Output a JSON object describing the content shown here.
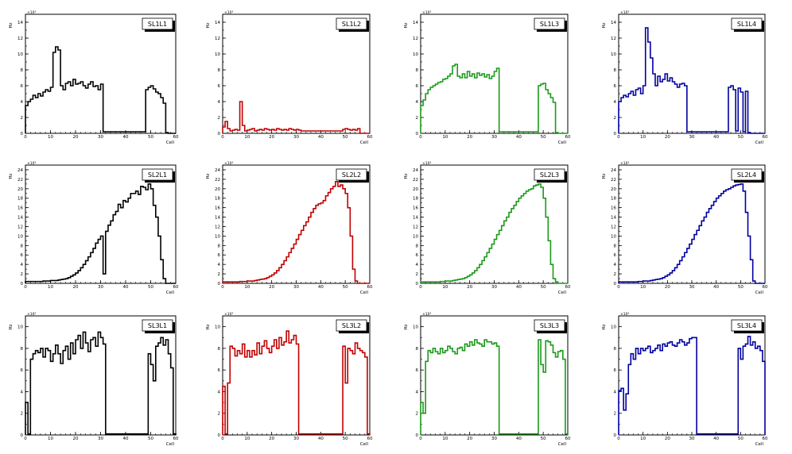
{
  "colors": {
    "black": "#000000",
    "red": "#c00000",
    "green": "#1a9a1a",
    "blue": "#0000a0"
  },
  "common": {
    "xlabel": "Cell",
    "ylabel": "Hz",
    "xlim": [
      0,
      60
    ],
    "xticks": [
      0,
      10,
      20,
      30,
      40,
      50,
      60
    ],
    "exponent_label": "×10³"
  },
  "chart_data": [
    {
      "type": "histogram",
      "title": "SL1L1",
      "color": "black",
      "ylim": [
        0,
        15
      ],
      "yticks": [
        0,
        2,
        4,
        6,
        8,
        10,
        12,
        14
      ],
      "values": [
        3.5,
        4,
        4.3,
        4.8,
        4.5,
        5,
        4.7,
        5.2,
        5.5,
        5.3,
        5.8,
        10.2,
        10.9,
        10.5,
        6,
        5.5,
        6.3,
        6.5,
        6,
        6.8,
        6.2,
        6.3,
        6.5,
        6,
        5.7,
        6.2,
        6.5,
        5.9,
        6,
        5.5,
        6.2,
        0.2,
        0.2,
        0.2,
        0.2,
        0.2,
        0.2,
        0.2,
        0.2,
        0.2,
        0.2,
        0.2,
        0.2,
        0.2,
        0.2,
        0.2,
        0.2,
        0.2,
        5.5,
        5.8,
        6,
        5.6,
        5.2,
        5,
        4.5,
        3.8,
        0.1,
        0,
        0,
        0
      ]
    },
    {
      "type": "histogram",
      "title": "SL1L2",
      "color": "red",
      "ylim": [
        0,
        15
      ],
      "yticks": [
        0,
        2,
        4,
        6,
        8,
        10,
        12,
        14
      ],
      "values": [
        0.8,
        1.5,
        0.6,
        0.3,
        0.4,
        0.5,
        0.4,
        4,
        1,
        0.3,
        0.4,
        0.5,
        0.6,
        0.3,
        0.4,
        0.5,
        0.4,
        0.6,
        0.5,
        0.4,
        0.5,
        0.4,
        0.6,
        0.5,
        0.4,
        0.5,
        0.4,
        0.6,
        0.5,
        0.4,
        0.5,
        0.4,
        0.3,
        0.3,
        0.3,
        0.3,
        0.3,
        0.3,
        0.3,
        0.3,
        0.3,
        0.3,
        0.3,
        0.3,
        0.3,
        0.3,
        0.3,
        0.3,
        0.3,
        0.5,
        0.6,
        0.5,
        0.4,
        0.5,
        0.4,
        0.6,
        0,
        0,
        0,
        0
      ]
    },
    {
      "type": "histogram",
      "title": "SL1L3",
      "color": "green",
      "ylim": [
        0,
        15
      ],
      "yticks": [
        0,
        2,
        4,
        6,
        8,
        10,
        12,
        14
      ],
      "values": [
        3.5,
        4.2,
        5,
        5.5,
        5.8,
        6,
        6.2,
        6.4,
        6.5,
        6.8,
        6.9,
        7.2,
        7.5,
        8.5,
        8.7,
        7.2,
        7,
        7.5,
        7,
        7.8,
        7.2,
        7.5,
        7,
        7.6,
        7.3,
        7.5,
        7.1,
        7.4,
        6.9,
        7.2,
        7.8,
        8.2,
        0.2,
        0.2,
        0.2,
        0.2,
        0.2,
        0.2,
        0.2,
        0.2,
        0.2,
        0.2,
        0.2,
        0.2,
        0.2,
        0.2,
        0.2,
        0.2,
        6,
        6.2,
        6.3,
        5.5,
        5,
        4.5,
        3.9,
        0.1,
        0,
        0,
        0,
        0
      ]
    },
    {
      "type": "histogram",
      "title": "SL1L4",
      "color": "blue",
      "ylim": [
        0,
        15
      ],
      "yticks": [
        0,
        2,
        4,
        6,
        8,
        10,
        12,
        14
      ],
      "values": [
        4,
        4.5,
        4.8,
        4.6,
        5,
        5.3,
        4.8,
        5.5,
        5.7,
        5,
        6,
        13.3,
        11.5,
        9.5,
        7.5,
        6,
        7.2,
        6.5,
        6.8,
        7.5,
        6.6,
        7,
        6.5,
        6.2,
        5.8,
        6.2,
        6.3,
        6,
        0.2,
        0.2,
        0.2,
        0.2,
        0.2,
        0.2,
        0.2,
        0.2,
        0.2,
        0.2,
        0.2,
        0.2,
        0.2,
        0.2,
        0.2,
        0.2,
        0.2,
        5.8,
        6,
        5.5,
        0.3,
        5.7,
        5.2,
        0.2,
        5.3,
        0.1,
        0,
        0,
        0,
        0,
        0,
        0
      ]
    },
    {
      "type": "histogram",
      "title": "SL2L1",
      "color": "black",
      "ylim": [
        0,
        25
      ],
      "yticks": [
        0,
        2,
        4,
        6,
        8,
        10,
        12,
        14,
        16,
        18,
        20,
        22,
        24
      ],
      "values": [
        0.4,
        0.4,
        0.4,
        0.4,
        0.4,
        0.4,
        0.4,
        0.5,
        0.5,
        0.5,
        0.6,
        0.6,
        0.6,
        0.7,
        0.8,
        0.9,
        1,
        1.2,
        1.5,
        1.8,
        2.2,
        2.7,
        3.3,
        4,
        4.8,
        5.6,
        6.5,
        7.4,
        8.5,
        9.3,
        10,
        2,
        11,
        12.3,
        13.2,
        14.5,
        15.2,
        16.7,
        16,
        17.5,
        17.2,
        18,
        19,
        19,
        19.5,
        18.8,
        20.5,
        20.3,
        19.8,
        21,
        20,
        16.5,
        14,
        10,
        5,
        1,
        0,
        0,
        0,
        0
      ]
    },
    {
      "type": "histogram",
      "title": "SL2L2",
      "color": "red",
      "ylim": [
        0,
        25
      ],
      "yticks": [
        0,
        2,
        4,
        6,
        8,
        10,
        12,
        14,
        16,
        18,
        20,
        22,
        24
      ],
      "values": [
        0.3,
        0.3,
        0.3,
        0.3,
        0.3,
        0.3,
        0.3,
        0.4,
        0.4,
        0.4,
        0.5,
        0.5,
        0.5,
        0.6,
        0.7,
        0.8,
        0.9,
        1,
        1.2,
        1.5,
        1.8,
        2.2,
        2.7,
        3.3,
        4,
        4.8,
        5.6,
        6.5,
        7.4,
        8.3,
        9.3,
        10.3,
        11.2,
        12.2,
        13,
        14,
        15,
        15.8,
        16.5,
        16.8,
        17,
        17.5,
        18.5,
        19.2,
        20,
        20.5,
        21.5,
        20.5,
        20.8,
        20,
        19,
        16,
        10,
        3,
        0.5,
        0,
        0,
        0,
        0,
        0
      ]
    },
    {
      "type": "histogram",
      "title": "SL2L3",
      "color": "green",
      "ylim": [
        0,
        25
      ],
      "yticks": [
        0,
        2,
        4,
        6,
        8,
        10,
        12,
        14,
        16,
        18,
        20,
        22,
        24
      ],
      "values": [
        0.3,
        0.3,
        0.3,
        0.3,
        0.3,
        0.3,
        0.3,
        0.3,
        0.4,
        0.4,
        0.5,
        0.5,
        0.5,
        0.6,
        0.7,
        0.8,
        0.9,
        1,
        1.2,
        1.5,
        1.8,
        2.2,
        2.7,
        3.3,
        4,
        4.8,
        5.6,
        6.5,
        7.4,
        8.3,
        9.3,
        10.3,
        11.2,
        12.2,
        13.2,
        14,
        15,
        15.8,
        16.5,
        17.3,
        18,
        18.5,
        19,
        19.5,
        19.8,
        20,
        20.6,
        20.8,
        21,
        20.3,
        18,
        14,
        9,
        4,
        1,
        0.3,
        0,
        0,
        0,
        0
      ]
    },
    {
      "type": "histogram",
      "title": "SL2L4",
      "color": "blue",
      "ylim": [
        0,
        25
      ],
      "yticks": [
        0,
        2,
        4,
        6,
        8,
        10,
        12,
        14,
        16,
        18,
        20,
        22,
        24
      ],
      "values": [
        0.3,
        0.3,
        0.3,
        0.3,
        0.3,
        0.3,
        0.3,
        0.3,
        0.4,
        0.4,
        0.5,
        0.5,
        0.5,
        0.6,
        0.7,
        0.8,
        0.9,
        1,
        1.2,
        1.5,
        1.8,
        2.2,
        2.7,
        3.3,
        4,
        4.8,
        5.6,
        6.5,
        7.4,
        8.3,
        9.3,
        10.3,
        11.2,
        12.2,
        13.2,
        14,
        15,
        15.8,
        16.5,
        17.3,
        18,
        18.5,
        19,
        19.5,
        19.8,
        20,
        20.3,
        20.6,
        20.8,
        20.9,
        21,
        19.5,
        15,
        10,
        5,
        0.5,
        0,
        0,
        0,
        0
      ]
    },
    {
      "type": "histogram",
      "title": "SL3L1",
      "color": "black",
      "ylim": [
        0,
        11
      ],
      "yticks": [
        0,
        2,
        4,
        6,
        8,
        10
      ],
      "values": [
        3,
        0.1,
        7,
        7.5,
        7.8,
        7.6,
        8,
        7.2,
        8,
        7.8,
        6.8,
        7.5,
        8.3,
        7.5,
        6.6,
        7.8,
        8.2,
        7,
        8.5,
        7.5,
        8.8,
        9.2,
        8,
        9.5,
        8.5,
        7.7,
        8.8,
        9,
        8.2,
        9.5,
        9,
        8.4,
        0.1,
        0.1,
        0.1,
        0.1,
        0.1,
        0.1,
        0.1,
        0.1,
        0.1,
        0.1,
        0.1,
        0.1,
        0.1,
        0.1,
        0.1,
        0.1,
        0.1,
        7.5,
        6.5,
        5,
        8.2,
        8.5,
        9,
        8.3,
        8.8,
        7.5,
        6.2,
        0.1
      ]
    },
    {
      "type": "histogram",
      "title": "SL3L2",
      "color": "red",
      "ylim": [
        0,
        11
      ],
      "yticks": [
        0,
        2,
        4,
        6,
        8,
        10
      ],
      "values": [
        4.5,
        0.1,
        4.8,
        8.2,
        8,
        7.3,
        7.8,
        7.5,
        8.4,
        7.2,
        7.8,
        7.2,
        7.8,
        7.4,
        8.5,
        7.5,
        8.2,
        8.7,
        8,
        7.6,
        8.2,
        8.8,
        8,
        9,
        8.3,
        8.6,
        9.6,
        8.5,
        8.8,
        9.2,
        8.4,
        0.1,
        0.1,
        0.1,
        0.1,
        0.1,
        0.1,
        0.1,
        0.1,
        0.1,
        0.1,
        0.1,
        0.1,
        0.1,
        0.1,
        0.1,
        0.1,
        0.1,
        0.1,
        8.2,
        4.8,
        8,
        7.8,
        7.5,
        8.5,
        8,
        7.8,
        7.6,
        7.2,
        0.1
      ]
    },
    {
      "type": "histogram",
      "title": "SL3L3",
      "color": "green",
      "ylim": [
        0,
        11
      ],
      "yticks": [
        0,
        2,
        4,
        6,
        8,
        10
      ],
      "values": [
        3,
        2,
        6.8,
        7.8,
        7.6,
        8,
        7.7,
        7.5,
        8,
        7.6,
        7.8,
        8.2,
        8,
        7.7,
        7.5,
        8,
        8.1,
        7.8,
        8.4,
        8.2,
        8.6,
        8.3,
        8.8,
        8.5,
        8.4,
        8.2,
        8.8,
        8.6,
        8.6,
        8.4,
        8.5,
        8.2,
        0.1,
        0.1,
        0.1,
        0.1,
        0.1,
        0.1,
        0.1,
        0.1,
        0.1,
        0.1,
        0.1,
        0.1,
        0.1,
        0.1,
        0.1,
        0.1,
        8.8,
        6.5,
        5.8,
        8.7,
        8.6,
        8.3,
        7.6,
        7.2,
        7.7,
        7.8,
        7,
        0.1
      ]
    },
    {
      "type": "histogram",
      "title": "SL3L4",
      "color": "blue",
      "ylim": [
        0,
        11
      ],
      "yticks": [
        0,
        2,
        4,
        6,
        8,
        10
      ],
      "values": [
        4.1,
        4.3,
        2.3,
        3.8,
        6.5,
        7.5,
        7,
        8,
        7.5,
        8,
        7.8,
        8,
        8.2,
        7.6,
        7.8,
        8,
        8.3,
        7.8,
        8.4,
        8.2,
        8.5,
        8.6,
        8.3,
        8.2,
        8.5,
        8.8,
        8.6,
        8.3,
        8.5,
        8.9,
        9,
        9,
        0.1,
        0.1,
        0.1,
        0.1,
        0.1,
        0.1,
        0.1,
        0.1,
        0.1,
        0.1,
        0.1,
        0.1,
        0.1,
        0.1,
        0.1,
        0.1,
        0.1,
        8,
        7,
        8.2,
        8.4,
        9.1,
        8.3,
        8.6,
        8,
        8.2,
        7.8,
        6.8
      ]
    }
  ]
}
